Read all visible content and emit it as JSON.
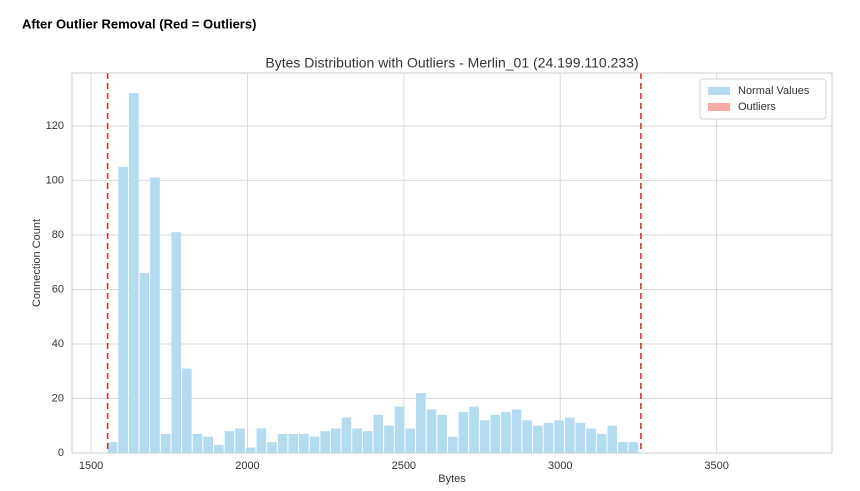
{
  "header": {
    "title": "After Outlier Removal (Red = Outliers)"
  },
  "chart_data": {
    "type": "histogram",
    "title": "Bytes Distribution with Outliers - Merlin_01 (24.199.110.233)",
    "xlabel": "Bytes",
    "ylabel": "Connection Count",
    "bins": [
      1553,
      1587,
      1621,
      1655,
      1689,
      1723,
      1757,
      1791,
      1825,
      1859,
      1893,
      1927,
      1961,
      1995,
      2029,
      2063,
      2097,
      2131,
      2165,
      2199,
      2233,
      2267,
      2301,
      2335,
      2369,
      2403,
      2437,
      2471,
      2505,
      2539,
      2573,
      2607,
      2641,
      2675,
      2709,
      2743,
      2777,
      2811,
      2845,
      2879,
      2913,
      2947,
      2981,
      3015,
      3049,
      3083,
      3117,
      3151,
      3185,
      3219,
      3253
    ],
    "series": [
      {
        "name": "Normal Values",
        "color": "#b3dcf0",
        "values": [
          4,
          105,
          132,
          66,
          101,
          7,
          81,
          31,
          7,
          6,
          3,
          8,
          9,
          2,
          9,
          4,
          7,
          7,
          7,
          6,
          8,
          9,
          13,
          9,
          8,
          14,
          10,
          17,
          9,
          22,
          16,
          14,
          6,
          15,
          17,
          12,
          14,
          15,
          16,
          12,
          10,
          11,
          12,
          13,
          11,
          9,
          7,
          10,
          4,
          4
        ]
      },
      {
        "name": "Outliers",
        "color": "#f4aaa5",
        "values": []
      }
    ],
    "thresholds": [
      1553,
      3258
    ],
    "threshold_color": "#e0261b",
    "xlim": [
      1439,
      3869
    ],
    "ylim": [
      0,
      139.4
    ],
    "xticks": [
      1500,
      2000,
      2500,
      3000,
      3500
    ],
    "yticks": [
      0,
      20,
      40,
      60,
      80,
      100,
      120
    ],
    "grid": true,
    "legend": "upper right"
  }
}
